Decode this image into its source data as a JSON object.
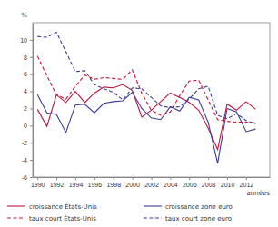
{
  "chart_data": {
    "type": "line",
    "y_label": "%",
    "x_label": "années",
    "x": [
      1990,
      1991,
      1992,
      1993,
      1994,
      1995,
      1996,
      1997,
      1998,
      1999,
      2000,
      2001,
      2002,
      2003,
      2004,
      2005,
      2006,
      2007,
      2008,
      2009,
      2010,
      2011,
      2012,
      2013
    ],
    "xlim": [
      1989.5,
      2014.5
    ],
    "xticks": [
      1990,
      1992,
      1994,
      1996,
      1998,
      2000,
      2002,
      2004,
      2006,
      2008,
      2010,
      2012
    ],
    "ylim": [
      -6,
      12
    ],
    "yticks": [
      -6,
      -4,
      -2,
      0,
      2,
      4,
      6,
      8,
      10
    ],
    "grid": false,
    "legend": "bottom",
    "series": [
      {
        "name": "croissance États-Unis",
        "color": "#c0143c",
        "line_style": "solid",
        "values": [
          1.9,
          -0.1,
          3.6,
          2.7,
          4.0,
          2.7,
          3.8,
          4.5,
          4.4,
          4.8,
          4.1,
          1.0,
          1.8,
          2.8,
          3.8,
          3.3,
          2.7,
          1.8,
          -0.3,
          -2.8,
          2.5,
          1.8,
          2.8,
          1.9
        ]
      },
      {
        "name": "croissance zone euro",
        "color": "#3c3c9a",
        "line_style": "solid",
        "values": [
          3.6,
          1.5,
          1.3,
          -0.8,
          2.4,
          2.5,
          1.5,
          2.6,
          2.8,
          2.9,
          3.9,
          2.0,
          0.9,
          0.7,
          2.2,
          1.7,
          3.3,
          3.0,
          0.4,
          -4.4,
          2.0,
          1.6,
          -0.7,
          -0.4
        ]
      },
      {
        "name": "taux court États-Unis",
        "color": "#c0143c",
        "line_style": "dashed",
        "values": [
          8.1,
          5.8,
          3.6,
          3.1,
          4.6,
          5.9,
          5.4,
          5.6,
          5.5,
          5.4,
          6.5,
          3.8,
          1.8,
          1.2,
          1.6,
          3.5,
          5.2,
          5.3,
          3.0,
          0.7,
          0.5,
          0.4,
          0.4,
          0.3
        ]
      },
      {
        "name": "taux court zone euro",
        "color": "#3c3c9a",
        "line_style": "dashed",
        "values": [
          10.4,
          10.3,
          10.9,
          8.6,
          6.3,
          6.4,
          4.8,
          4.3,
          3.9,
          3.0,
          4.4,
          4.3,
          3.3,
          2.3,
          2.1,
          2.2,
          3.1,
          4.3,
          4.6,
          1.2,
          0.8,
          1.4,
          0.6,
          0.2
        ]
      }
    ]
  }
}
